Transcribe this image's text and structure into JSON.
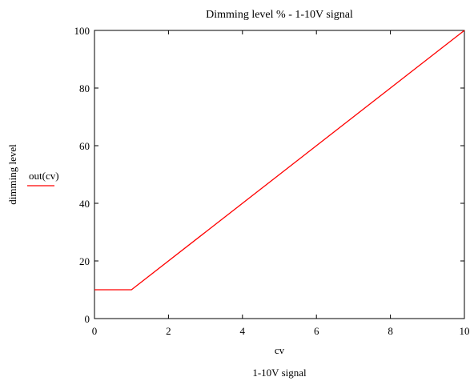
{
  "chart_data": {
    "type": "line",
    "title": "Dimming level % - 1-10V signal",
    "xlabel": "cv",
    "xlabel_sub": "1-10V signal",
    "ylabel": "dimming level",
    "xlim": [
      0,
      10
    ],
    "ylim": [
      0,
      100
    ],
    "x_ticks": [
      0,
      2,
      4,
      6,
      8,
      10
    ],
    "y_ticks": [
      0,
      20,
      40,
      60,
      80,
      100
    ],
    "legend_position": "left",
    "grid": false,
    "series": [
      {
        "name": "out(cv)",
        "color": "#ff0000",
        "x": [
          0,
          1,
          10
        ],
        "y": [
          10,
          10,
          100
        ]
      }
    ]
  }
}
